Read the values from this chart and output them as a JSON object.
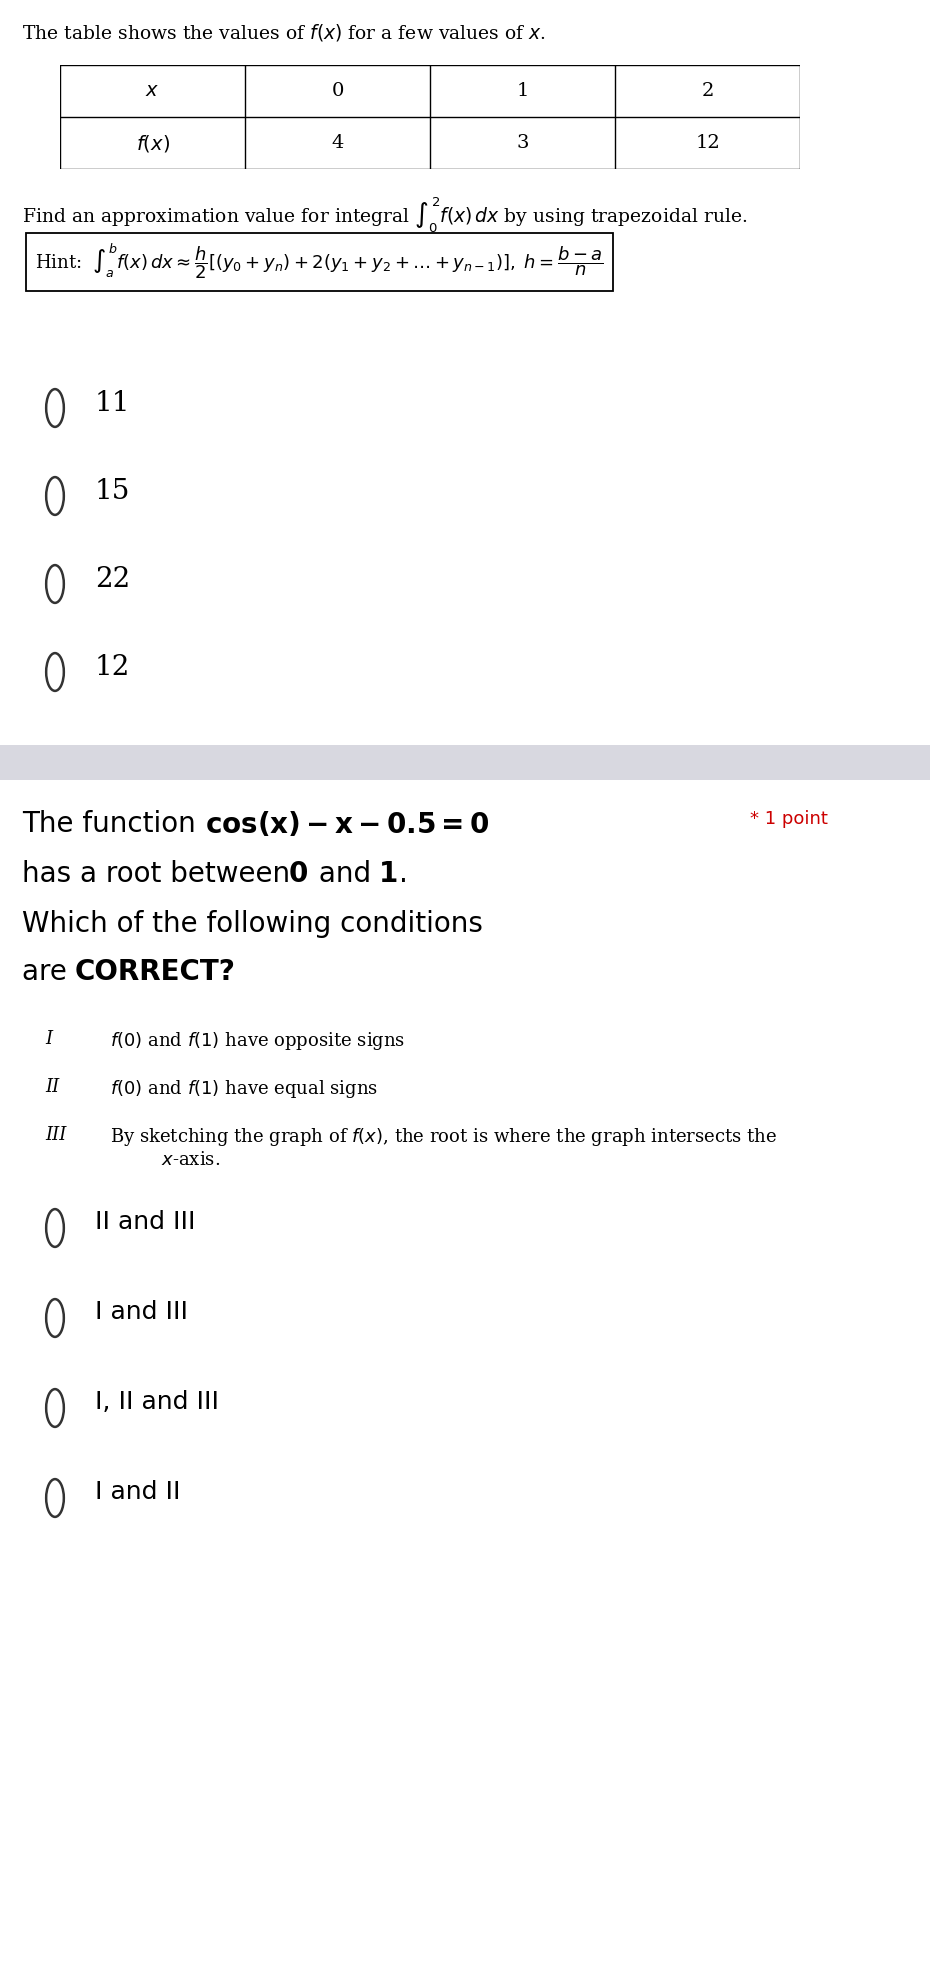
{
  "bg_color": "#ffffff",
  "q1_table_title": "The table shows the values of $f(x)$ for a few values of $x$.",
  "table_headers": [
    "$x$",
    "0",
    "1",
    "2"
  ],
  "table_row": [
    "$f(x)$",
    "4",
    "3",
    "12"
  ],
  "q1_integral_text": "Find an approximation value for integral $\\int_0^2 f(x)\\,dx$ by using trapezoidal rule.",
  "q1_hint_label": "Hint: ",
  "q1_hint_math": "$\\int_a^b f(x)\\,dx \\approx \\dfrac{h}{2}\\left[(y_0+y_n)+2(y_1+y_2+\\ldots+y_{n-1})\\right],\\; h=\\dfrac{b-a}{n}$",
  "q1_options": [
    "11",
    "15",
    "22",
    "12"
  ],
  "q2_options": [
    "II and III",
    "I and III",
    "I, II and III",
    "I and II"
  ],
  "separator_color": "#d8d8e0",
  "text_color": "#000000",
  "star_color": "#cc0000",
  "font_size_title": 13.5,
  "font_size_table": 14,
  "font_size_integral": 13.5,
  "font_size_hint": 13,
  "font_size_options_q1": 20,
  "font_size_q2_main": 20,
  "font_size_conditions_label": 13,
  "font_size_conditions_text": 13,
  "font_size_q2_options": 18,
  "font_size_star": 13
}
